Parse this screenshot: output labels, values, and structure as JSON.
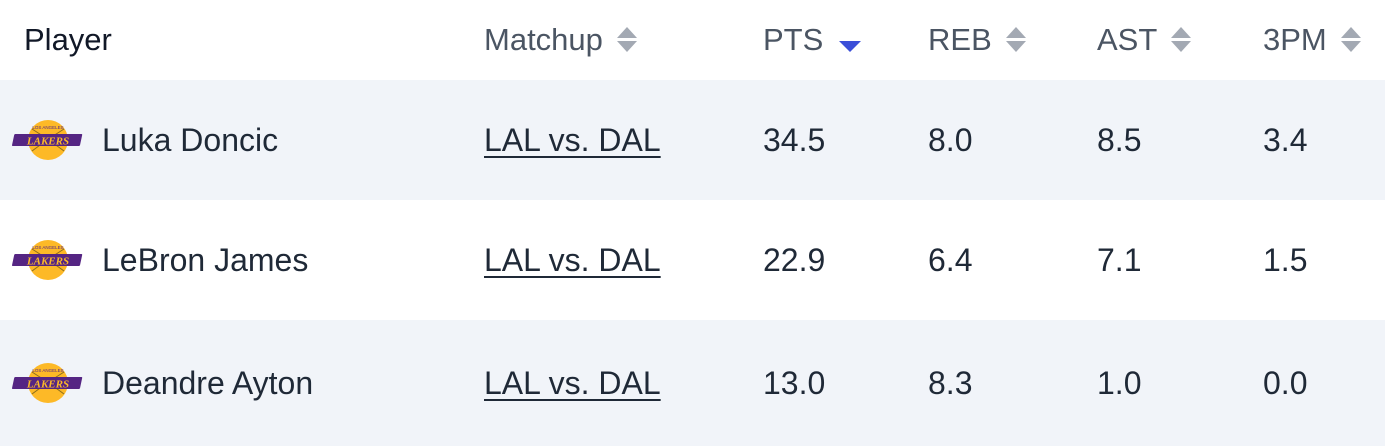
{
  "header": {
    "player": "Player",
    "matchup": "Matchup",
    "pts": "PTS",
    "reb": "REB",
    "ast": "AST",
    "tpm": "3PM"
  },
  "sort": {
    "column": "PTS",
    "direction": "descending"
  },
  "colors": {
    "accent": "#3b4fd8",
    "row_alt": "#f1f4f9",
    "logo_gold": "#fdb927",
    "logo_purple": "#552583"
  },
  "rows": [
    {
      "team_icon": "lakers-logo-icon",
      "player": "Luka Doncic",
      "matchup": "LAL vs. DAL",
      "pts": "34.5",
      "reb": "8.0",
      "ast": "8.5",
      "tpm": "3.4"
    },
    {
      "team_icon": "lakers-logo-icon",
      "player": "LeBron James",
      "matchup": "LAL vs. DAL",
      "pts": "22.9",
      "reb": "6.4",
      "ast": "7.1",
      "tpm": "1.5"
    },
    {
      "team_icon": "lakers-logo-icon",
      "player": "Deandre Ayton",
      "matchup": "LAL vs. DAL",
      "pts": "13.0",
      "reb": "8.3",
      "ast": "1.0",
      "tpm": "0.0"
    }
  ]
}
